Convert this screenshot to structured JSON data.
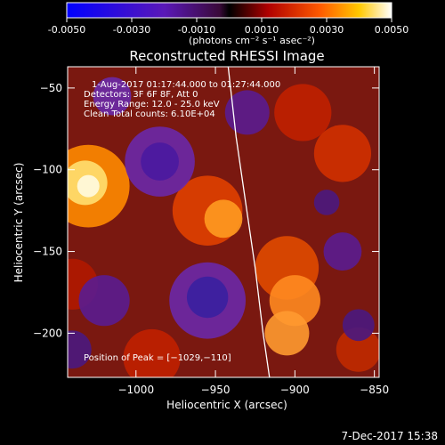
{
  "colors": {
    "background": "#000000",
    "text": "#ffffff",
    "limb": "#ffffff"
  },
  "colorbar": {
    "min": -0.005,
    "max": 0.005,
    "ticks": [
      "-0.0050",
      "-0.0030",
      "-0.0010",
      "0.0010",
      "0.0030",
      "0.0050"
    ],
    "units_label": "(photons cm⁻² s⁻¹ asec⁻²)"
  },
  "chart_data": {
    "type": "heatmap",
    "title": "Reconstructed RHESSI Image",
    "xlabel": "Heliocentric X (arcsec)",
    "ylabel": "Heliocentric Y (arcsec)",
    "xlim": [
      -1043,
      -847
    ],
    "ylim": [
      -227,
      -37
    ],
    "xticks": [
      -1000,
      -950,
      -900,
      -850
    ],
    "yticks": [
      -50,
      -100,
      -150,
      -200
    ],
    "xtick_labels": [
      "−1000",
      "−950",
      "−900",
      "−850"
    ],
    "ytick_labels": [
      "−50",
      "−100",
      "−150",
      "−200"
    ],
    "peak": {
      "x": -1029,
      "y": -110
    },
    "limb_curve": [
      [
        -942,
        -37
      ],
      [
        -937,
        -80
      ],
      [
        -931,
        -120
      ],
      [
        -925,
        -160
      ],
      [
        -920,
        -200
      ],
      [
        -916,
        -227
      ]
    ],
    "info_lines": [
      "1-Aug-2017 01:17:44.000 to 01:27:44.000",
      "Detectors: 3F 6F 8F, Att 0",
      "Energy Range: 12.0 - 25.0 keV",
      "Clean     Total counts: 6.10E+04"
    ],
    "peak_label": "Position of Peak = [−1029,−110]"
  },
  "footer": {
    "timestamp": "7-Dec-2017 15:38"
  }
}
